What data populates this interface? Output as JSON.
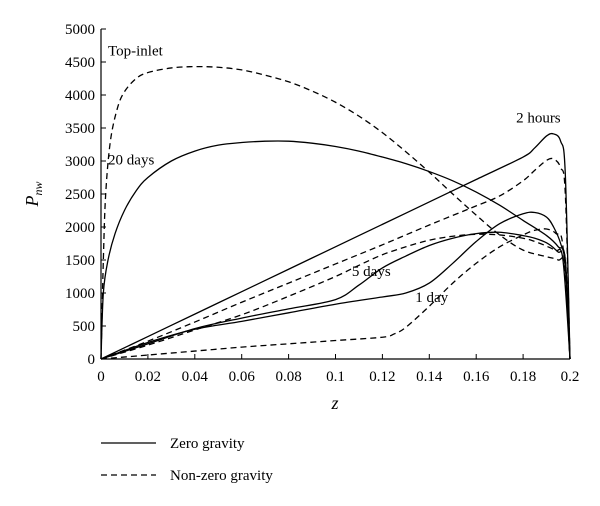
{
  "chart_data": {
    "type": "line",
    "xlabel": "z",
    "ylabel_main": "P",
    "ylabel_sub": "nw",
    "xlim": [
      0,
      0.2
    ],
    "ylim": [
      0,
      5000
    ],
    "xticks": [
      "0",
      "0.02",
      "0.04",
      "0.06",
      "0.08",
      "0.1",
      "0.12",
      "0.14",
      "0.16",
      "0.18",
      "0.2"
    ],
    "yticks": [
      "0",
      "500",
      "1000",
      "1500",
      "2000",
      "2500",
      "3000",
      "3500",
      "4000",
      "4500",
      "5000"
    ],
    "grid": false,
    "legend_placement": "bottom-left",
    "annotations": [
      {
        "text": "Top-inlet",
        "x": 0.003,
        "y": 4600
      },
      {
        "text": "20 days",
        "x": 0.003,
        "y": 2950
      },
      {
        "text": "2 hours",
        "x": 0.177,
        "y": 3580
      },
      {
        "text": "5 days",
        "x": 0.107,
        "y": 1260
      },
      {
        "text": "1 day",
        "x": 0.134,
        "y": 860
      }
    ],
    "series": [
      {
        "group": "zero",
        "style": "solid",
        "x": [
          0,
          0.001,
          0.003,
          0.006,
          0.01,
          0.015,
          0.02,
          0.03,
          0.04,
          0.05,
          0.06,
          0.07,
          0.08,
          0.09,
          0.1,
          0.11,
          0.12,
          0.13,
          0.14,
          0.15,
          0.16,
          0.17,
          0.18,
          0.19,
          0.195,
          0.198,
          0.2
        ],
        "y": [
          0,
          1000,
          1500,
          1900,
          2250,
          2550,
          2750,
          3000,
          3150,
          3240,
          3280,
          3300,
          3300,
          3270,
          3220,
          3150,
          3060,
          2960,
          2840,
          2700,
          2530,
          2330,
          2100,
          1870,
          1700,
          1500,
          0
        ]
      },
      {
        "group": "zero",
        "style": "solid",
        "x": [
          0,
          0.02,
          0.04,
          0.06,
          0.08,
          0.1,
          0.12,
          0.14,
          0.16,
          0.18,
          0.185,
          0.19,
          0.193,
          0.196,
          0.198,
          0.2
        ],
        "y": [
          0,
          340,
          680,
          1020,
          1360,
          1700,
          2040,
          2380,
          2720,
          3060,
          3200,
          3380,
          3410,
          3300,
          2800,
          0
        ]
      },
      {
        "group": "zero",
        "style": "solid",
        "x": [
          0,
          0.02,
          0.04,
          0.06,
          0.08,
          0.1,
          0.11,
          0.12,
          0.13,
          0.14,
          0.15,
          0.16,
          0.17,
          0.18,
          0.185,
          0.19,
          0.194,
          0.197,
          0.2
        ],
        "y": [
          0,
          230,
          460,
          620,
          760,
          900,
          1120,
          1380,
          1560,
          1720,
          1830,
          1900,
          1920,
          1870,
          1830,
          1760,
          1650,
          1500,
          0
        ]
      },
      {
        "group": "zero",
        "style": "solid",
        "x": [
          0,
          0.02,
          0.04,
          0.06,
          0.08,
          0.1,
          0.12,
          0.13,
          0.14,
          0.15,
          0.16,
          0.17,
          0.18,
          0.185,
          0.19,
          0.193,
          0.196,
          0.198,
          0.2
        ],
        "y": [
          0,
          250,
          450,
          570,
          700,
          830,
          940,
          1000,
          1150,
          1450,
          1780,
          2050,
          2200,
          2220,
          2150,
          2000,
          1750,
          1400,
          0
        ]
      },
      {
        "group": "nonzero",
        "style": "dashed",
        "x": [
          0,
          0.001,
          0.002,
          0.004,
          0.007,
          0.01,
          0.015,
          0.02,
          0.03,
          0.04,
          0.05,
          0.06,
          0.07,
          0.08,
          0.09,
          0.1,
          0.11,
          0.12,
          0.13,
          0.14,
          0.15,
          0.16,
          0.17,
          0.18,
          0.19,
          0.195,
          0.198,
          0.2
        ],
        "y": [
          0,
          1500,
          2500,
          3300,
          3800,
          4050,
          4250,
          4340,
          4410,
          4430,
          4420,
          4380,
          4300,
          4200,
          4060,
          3890,
          3680,
          3430,
          3140,
          2830,
          2500,
          2180,
          1880,
          1650,
          1550,
          1500,
          1400,
          0
        ]
      },
      {
        "group": "nonzero",
        "style": "dashed",
        "x": [
          0,
          0.02,
          0.04,
          0.06,
          0.08,
          0.1,
          0.12,
          0.14,
          0.16,
          0.17,
          0.18,
          0.185,
          0.19,
          0.193,
          0.196,
          0.198,
          0.2
        ],
        "y": [
          0,
          270,
          560,
          860,
          1150,
          1440,
          1730,
          2030,
          2320,
          2470,
          2700,
          2860,
          3010,
          3030,
          2900,
          2500,
          0
        ]
      },
      {
        "group": "nonzero",
        "style": "dashed",
        "x": [
          0,
          0.02,
          0.04,
          0.06,
          0.08,
          0.1,
          0.11,
          0.12,
          0.13,
          0.14,
          0.15,
          0.16,
          0.17,
          0.18,
          0.185,
          0.19,
          0.195,
          0.198,
          0.2
        ],
        "y": [
          0,
          210,
          440,
          670,
          950,
          1250,
          1420,
          1580,
          1700,
          1800,
          1860,
          1890,
          1880,
          1830,
          1780,
          1710,
          1620,
          1500,
          0
        ]
      },
      {
        "group": "nonzero",
        "style": "dashed",
        "x": [
          0,
          0.02,
          0.04,
          0.06,
          0.08,
          0.1,
          0.12,
          0.125,
          0.13,
          0.14,
          0.15,
          0.16,
          0.17,
          0.18,
          0.185,
          0.19,
          0.194,
          0.197,
          0.2
        ],
        "y": [
          0,
          60,
          120,
          180,
          230,
          280,
          330,
          380,
          480,
          800,
          1150,
          1450,
          1700,
          1880,
          1950,
          1970,
          1900,
          1700,
          0
        ]
      }
    ]
  },
  "legend": {
    "items": [
      {
        "label": "Zero gravity",
        "style": "solid"
      },
      {
        "label": "Non-zero gravity",
        "style": "dashed"
      }
    ]
  }
}
